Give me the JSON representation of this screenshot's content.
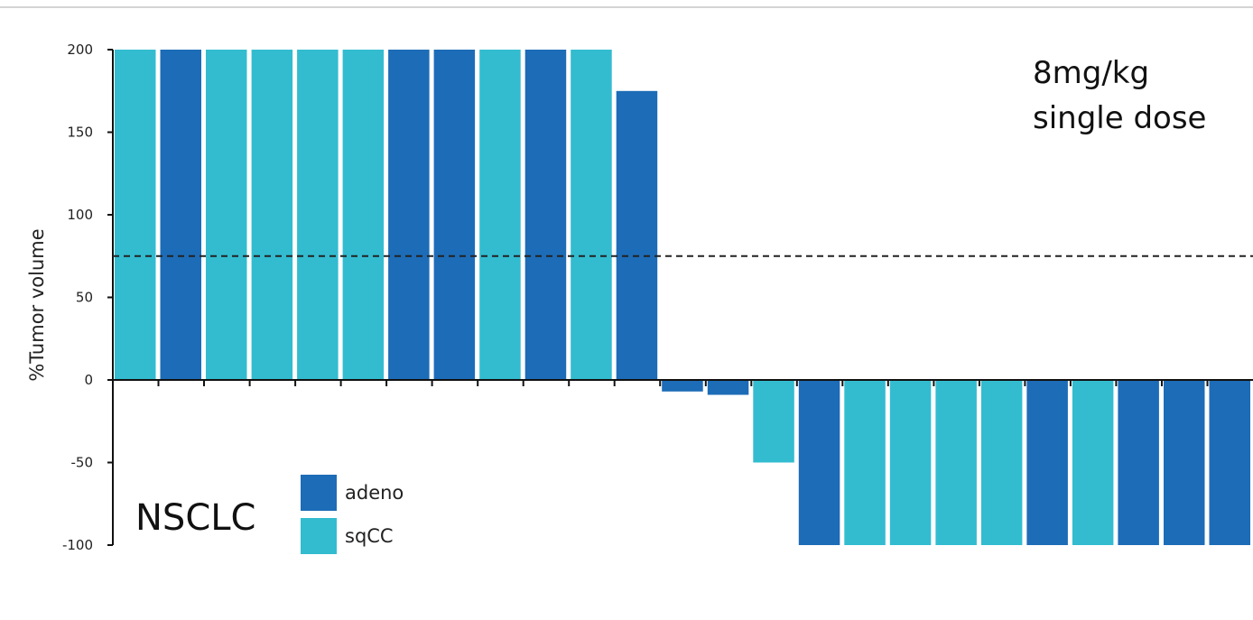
{
  "chart_data": {
    "type": "bar",
    "title": "",
    "xlabel": "",
    "ylabel": "%Tumor volume",
    "ylim": [
      -100,
      200
    ],
    "yticks": [
      -100,
      -50,
      0,
      50,
      100,
      150,
      200
    ],
    "reference_line": 75,
    "annotation": [
      "8mg/kg",
      "single dose"
    ],
    "group_label": "NSCLC",
    "legend": [
      {
        "label": "adeno",
        "color": "#1d6cb7"
      },
      {
        "label": "sqCC",
        "color": "#33bcd0"
      }
    ],
    "bars": [
      {
        "value": 200,
        "group": "sqCC"
      },
      {
        "value": 200,
        "group": "adeno"
      },
      {
        "value": 200,
        "group": "sqCC"
      },
      {
        "value": 200,
        "group": "sqCC"
      },
      {
        "value": 200,
        "group": "sqCC"
      },
      {
        "value": 200,
        "group": "sqCC"
      },
      {
        "value": 200,
        "group": "adeno"
      },
      {
        "value": 200,
        "group": "adeno"
      },
      {
        "value": 200,
        "group": "sqCC"
      },
      {
        "value": 200,
        "group": "adeno"
      },
      {
        "value": 200,
        "group": "sqCC"
      },
      {
        "value": 175,
        "group": "adeno"
      },
      {
        "value": -7,
        "group": "adeno"
      },
      {
        "value": -9,
        "group": "adeno"
      },
      {
        "value": -50,
        "group": "sqCC"
      },
      {
        "value": -100,
        "group": "adeno"
      },
      {
        "value": -100,
        "group": "sqCC"
      },
      {
        "value": -100,
        "group": "sqCC"
      },
      {
        "value": -100,
        "group": "sqCC"
      },
      {
        "value": -100,
        "group": "sqCC"
      },
      {
        "value": -100,
        "group": "adeno"
      },
      {
        "value": -100,
        "group": "sqCC"
      },
      {
        "value": -100,
        "group": "adeno"
      },
      {
        "value": -100,
        "group": "adeno"
      },
      {
        "value": -100,
        "group": "adeno"
      }
    ]
  }
}
